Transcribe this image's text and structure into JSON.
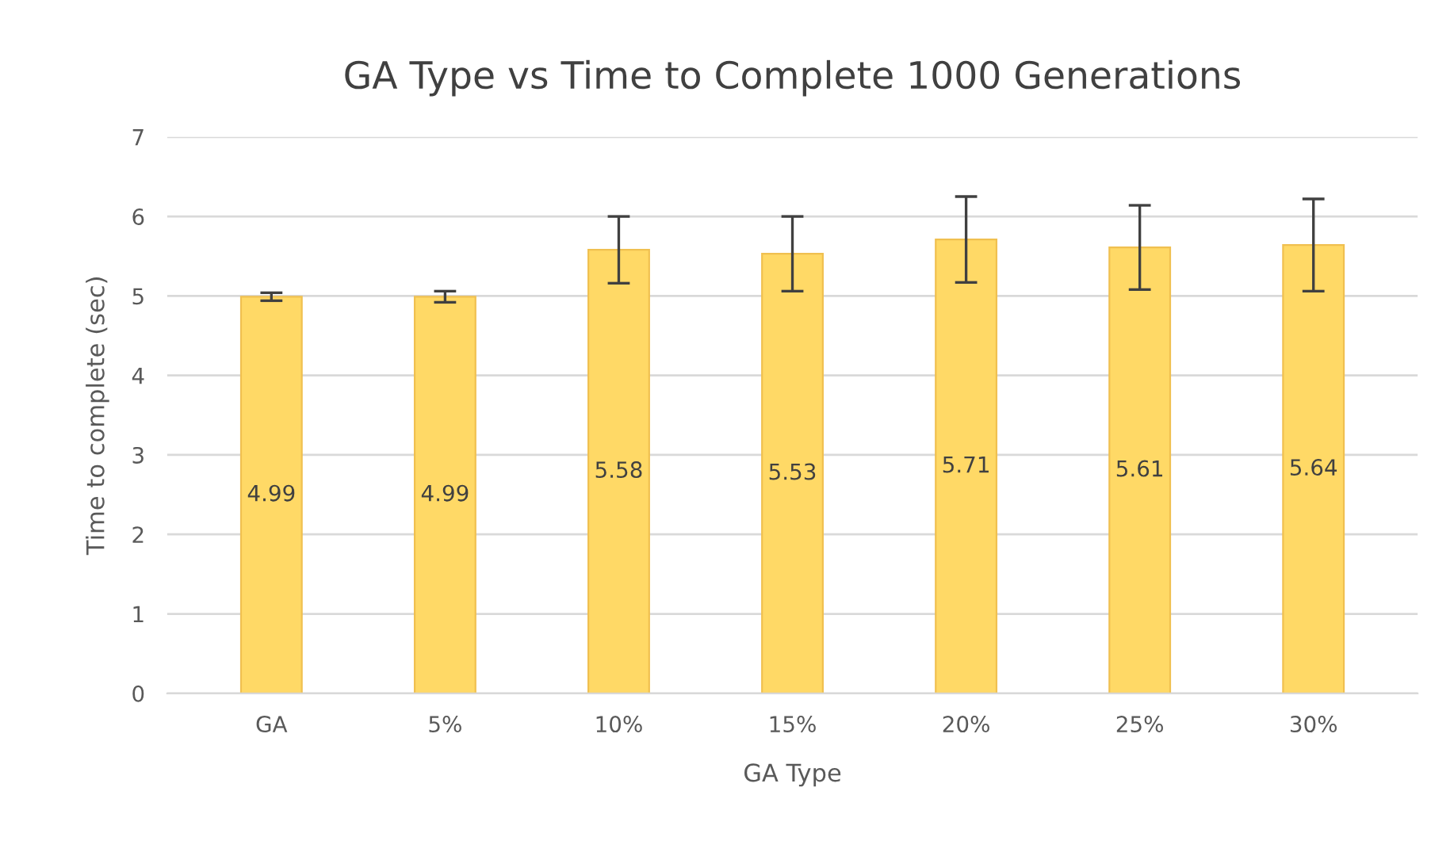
{
  "chart_data": {
    "type": "bar",
    "title": "GA Type vs Time to Complete 1000 Generations",
    "xlabel": "GA Type",
    "ylabel": "Time to complete (sec)",
    "categories": [
      "GA",
      "5%",
      "10%",
      "15%",
      "20%",
      "25%",
      "30%"
    ],
    "values": [
      4.99,
      4.99,
      5.58,
      5.53,
      5.71,
      5.61,
      5.64
    ],
    "errors": [
      0.05,
      0.07,
      0.42,
      0.47,
      0.54,
      0.53,
      0.58
    ],
    "color": "#ffd966",
    "ylim": [
      0,
      7
    ],
    "yticks": [
      0,
      1,
      2,
      3,
      4,
      5,
      6,
      7
    ],
    "grid": "y",
    "data_labels": true
  }
}
